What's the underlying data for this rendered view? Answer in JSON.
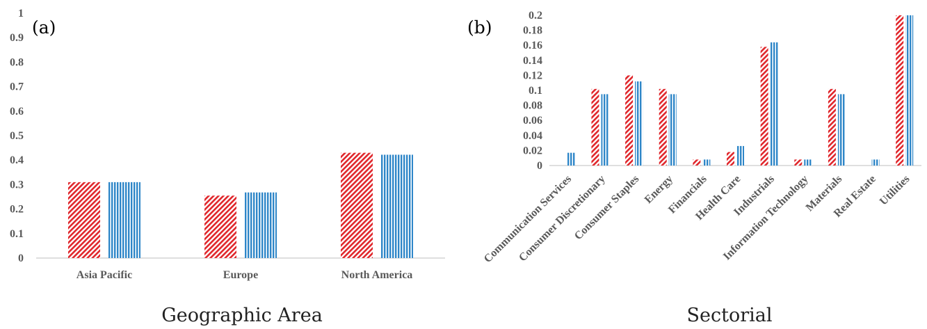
{
  "chart_data": [
    {
      "type": "bar",
      "panel_label": "(a)",
      "caption": "Geographic Area",
      "categories": [
        "Asia Pacific",
        "Europe",
        "North America"
      ],
      "series": [
        {
          "values": [
            0.31,
            0.255,
            0.43
          ],
          "color": "#e0262b",
          "pattern": "diagonal-hatch"
        },
        {
          "values": [
            0.31,
            0.268,
            0.422
          ],
          "color": "#2e86c8",
          "pattern": "vertical-hatch"
        }
      ],
      "yticks": [
        "0",
        "0.1",
        "0.2",
        "0.3",
        "0.4",
        "0.5",
        "0.6",
        "0.7",
        "0.8",
        "0.9",
        "1"
      ],
      "ylim": [
        0,
        1
      ],
      "grid": false
    },
    {
      "type": "bar",
      "panel_label": "(b)",
      "caption": "Sectorial",
      "categories": [
        "Communication Services",
        "Consumer Discretionary",
        "Consumer Staples",
        "Energy",
        "Financials",
        "Health Care",
        "Industrials",
        "Information Technology",
        "Materials",
        "Real Estate",
        "Utilities"
      ],
      "series": [
        {
          "values": [
            0,
            0.102,
            0.12,
            0.102,
            0.008,
            0.018,
            0.158,
            0.008,
            0.102,
            0,
            0.2
          ],
          "color": "#e0262b",
          "pattern": "diagonal-hatch"
        },
        {
          "values": [
            0.017,
            0.095,
            0.112,
            0.095,
            0.008,
            0.026,
            0.164,
            0.008,
            0.095,
            0.008,
            0.2
          ],
          "color": "#2e86c8",
          "pattern": "vertical-hatch"
        }
      ],
      "yticks": [
        "0",
        "0.02",
        "0.04",
        "0.06",
        "0.08",
        "0.1",
        "0.12",
        "0.14",
        "0.16",
        "0.18",
        "0.2"
      ],
      "ylim": [
        0,
        0.2
      ],
      "grid": false
    }
  ]
}
